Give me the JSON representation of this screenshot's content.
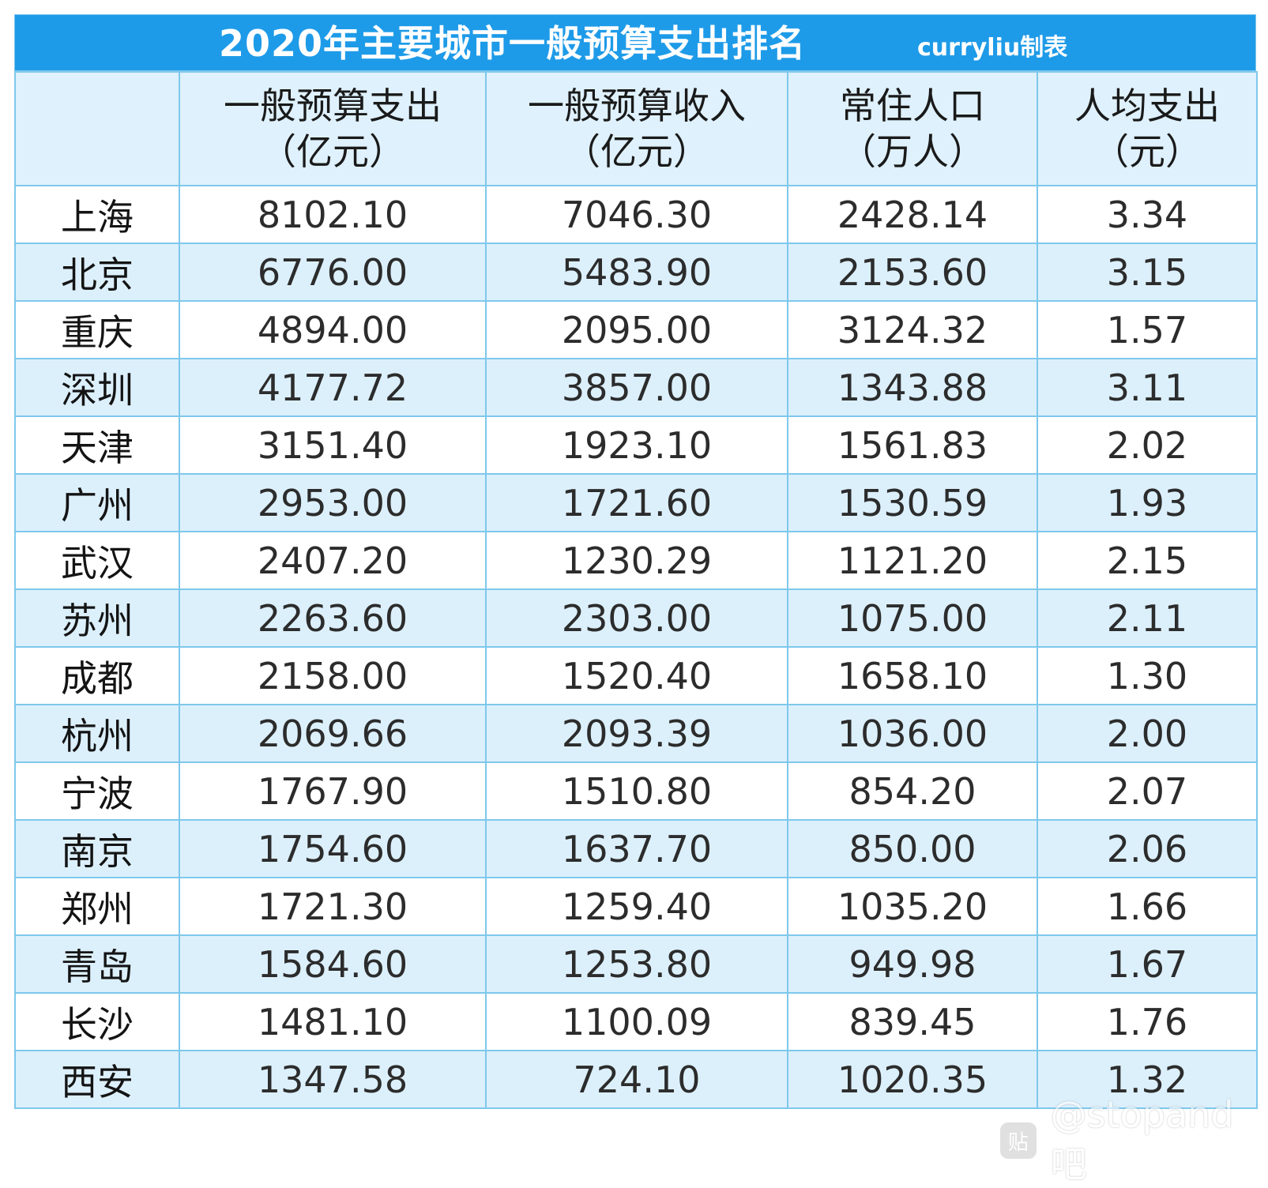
{
  "title": "2020年主要城市一般预算支出排名",
  "credit": "curryliu制表",
  "headers": [
    {
      "line1": "",
      "line2": ""
    },
    {
      "line1": "一般预算支出",
      "line2": "（亿元）"
    },
    {
      "line1": "一般预算收入",
      "line2": "（亿元）"
    },
    {
      "line1": "常住人口",
      "line2": "（万人）"
    },
    {
      "line1": "人均支出",
      "line2": "（元）"
    }
  ],
  "rows": [
    [
      "上海",
      "8102.10",
      "7046.30",
      "2428.14",
      "3.34"
    ],
    [
      "北京",
      "6776.00",
      "5483.90",
      "2153.60",
      "3.15"
    ],
    [
      "重庆",
      "4894.00",
      "2095.00",
      "3124.32",
      "1.57"
    ],
    [
      "深圳",
      "4177.72",
      "3857.00",
      "1343.88",
      "3.11"
    ],
    [
      "天津",
      "3151.40",
      "1923.10",
      "1561.83",
      "2.02"
    ],
    [
      "广州",
      "2953.00",
      "1721.60",
      "1530.59",
      "1.93"
    ],
    [
      "武汉",
      "2407.20",
      "1230.29",
      "1121.20",
      "2.15"
    ],
    [
      "苏州",
      "2263.60",
      "2303.00",
      "1075.00",
      "2.11"
    ],
    [
      "成都",
      "2158.00",
      "1520.40",
      "1658.10",
      "1.30"
    ],
    [
      "杭州",
      "2069.66",
      "2093.39",
      "1036.00",
      "2.00"
    ],
    [
      "宁波",
      "1767.90",
      "1510.80",
      "854.20",
      "2.07"
    ],
    [
      "南京",
      "1754.60",
      "1637.70",
      "850.00",
      "2.06"
    ],
    [
      "郑州",
      "1721.30",
      "1259.40",
      "1035.20",
      "1.66"
    ],
    [
      "青岛",
      "1584.60",
      "1253.80",
      "949.98",
      "1.67"
    ],
    [
      "长沙",
      "1481.10",
      "1100.09",
      "839.45",
      "1.76"
    ],
    [
      "西安",
      "1347.58",
      "724.10",
      "1020.35",
      "1.32"
    ]
  ],
  "watermark": {
    "icon": "tieba-paw-icon",
    "glyph": "贴",
    "text": "@stopand吧"
  },
  "colors": {
    "title_bg": "#1e9be8",
    "border": "#7ec8ec",
    "stripe": "#dcf0fc"
  }
}
